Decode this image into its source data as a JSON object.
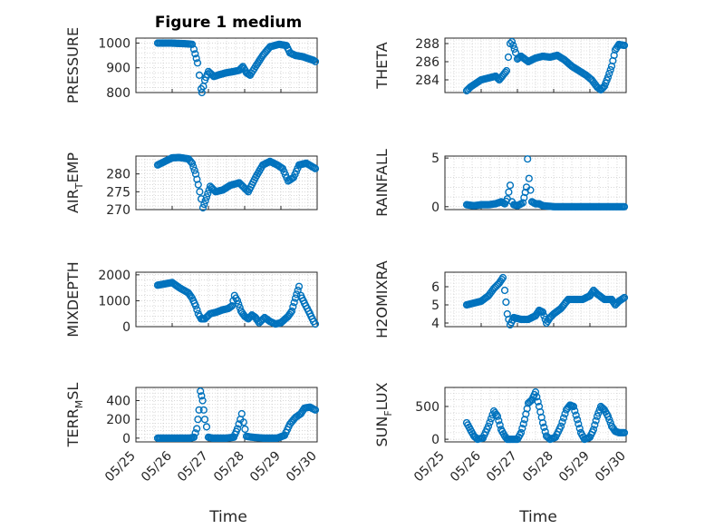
{
  "figure": {
    "title": "Figure 1 medium",
    "xlabel": "Time",
    "x_ticks": [
      "05/25",
      "05/26",
      "05/27",
      "05/28",
      "05/29",
      "05/30"
    ],
    "marker_color": "#0072BD"
  },
  "chart_data": [
    {
      "type": "scatter",
      "id": "pressure",
      "title": "Figure 1 medium",
      "ylabel": "PRESSURE",
      "ylabel_main": "PRESSURE",
      "ylabel_sub": "",
      "ylabel_tail": "",
      "ylim": [
        800,
        1020
      ],
      "yticks": [
        800,
        900,
        1000
      ],
      "xlim": [
        0,
        5
      ],
      "x_dates": [
        "05/25",
        "05/26",
        "05/27",
        "05/28",
        "05/29",
        "05/30"
      ],
      "show_xticks": false,
      "anchors": [
        [
          0.6,
          1000
        ],
        [
          0.95,
          1000
        ],
        [
          1.4,
          997
        ],
        [
          1.55,
          995
        ],
        [
          1.6,
          975
        ],
        [
          1.7,
          920
        ],
        [
          1.75,
          870
        ],
        [
          1.8,
          815
        ],
        [
          1.82,
          800
        ],
        [
          1.9,
          850
        ],
        [
          2.0,
          885
        ],
        [
          2.15,
          865
        ],
        [
          2.3,
          872
        ],
        [
          2.5,
          880
        ],
        [
          2.7,
          885
        ],
        [
          2.85,
          890
        ],
        [
          2.95,
          905
        ],
        [
          3.05,
          880
        ],
        [
          3.15,
          870
        ],
        [
          3.3,
          905
        ],
        [
          3.5,
          950
        ],
        [
          3.7,
          985
        ],
        [
          3.95,
          995
        ],
        [
          4.15,
          990
        ],
        [
          4.25,
          960
        ],
        [
          4.4,
          950
        ],
        [
          4.6,
          945
        ],
        [
          4.9,
          930
        ],
        [
          4.95,
          925
        ]
      ]
    },
    {
      "type": "scatter",
      "id": "theta",
      "ylabel": "THETA",
      "ylabel_main": "THETA",
      "ylabel_sub": "",
      "ylabel_tail": "",
      "ylim": [
        282.6,
        288.6
      ],
      "yticks": [
        284,
        286,
        288
      ],
      "xlim": [
        0,
        5
      ],
      "show_xticks": false,
      "anchors": [
        [
          0.6,
          282.8
        ],
        [
          0.7,
          283.2
        ],
        [
          0.85,
          283.6
        ],
        [
          1.0,
          284.0
        ],
        [
          1.2,
          284.2
        ],
        [
          1.4,
          284.4
        ],
        [
          1.5,
          284.0
        ],
        [
          1.6,
          284.5
        ],
        [
          1.7,
          285.0
        ],
        [
          1.75,
          286.5
        ],
        [
          1.8,
          288.0
        ],
        [
          1.85,
          288.2
        ],
        [
          1.95,
          287.0
        ],
        [
          2.0,
          286.3
        ],
        [
          2.1,
          286.6
        ],
        [
          2.3,
          286.0
        ],
        [
          2.5,
          286.4
        ],
        [
          2.7,
          286.6
        ],
        [
          2.9,
          286.5
        ],
        [
          3.1,
          286.7
        ],
        [
          3.3,
          286.2
        ],
        [
          3.5,
          285.5
        ],
        [
          3.7,
          285.0
        ],
        [
          3.9,
          284.5
        ],
        [
          4.05,
          284.0
        ],
        [
          4.2,
          283.2
        ],
        [
          4.3,
          282.9
        ],
        [
          4.4,
          283.3
        ],
        [
          4.5,
          284.3
        ],
        [
          4.6,
          285.5
        ],
        [
          4.7,
          287.3
        ],
        [
          4.8,
          287.9
        ],
        [
          4.95,
          287.8
        ]
      ]
    },
    {
      "type": "scatter",
      "id": "air_temp",
      "ylabel": "AIR_TEMP",
      "ylabel_main": "AIR",
      "ylabel_sub": "T",
      "ylabel_tail": "EMP",
      "ylim": [
        270,
        285
      ],
      "yticks": [
        270,
        275,
        280
      ],
      "xlim": [
        0,
        5
      ],
      "show_xticks": false,
      "anchors": [
        [
          0.6,
          282.5
        ],
        [
          0.8,
          283.5
        ],
        [
          1.0,
          284.5
        ],
        [
          1.2,
          284.6
        ],
        [
          1.45,
          284.2
        ],
        [
          1.55,
          283.0
        ],
        [
          1.65,
          280.0
        ],
        [
          1.72,
          277.0
        ],
        [
          1.8,
          273.0
        ],
        [
          1.85,
          270.5
        ],
        [
          1.95,
          273.5
        ],
        [
          2.05,
          276.5
        ],
        [
          2.2,
          275.0
        ],
        [
          2.4,
          275.5
        ],
        [
          2.6,
          276.8
        ],
        [
          2.85,
          277.5
        ],
        [
          3.0,
          276.0
        ],
        [
          3.1,
          275.0
        ],
        [
          3.3,
          279.0
        ],
        [
          3.5,
          282.5
        ],
        [
          3.7,
          283.5
        ],
        [
          3.9,
          282.5
        ],
        [
          4.05,
          281.5
        ],
        [
          4.2,
          278.0
        ],
        [
          4.35,
          279.0
        ],
        [
          4.5,
          282.5
        ],
        [
          4.7,
          283.0
        ],
        [
          4.95,
          281.5
        ]
      ]
    },
    {
      "type": "scatter",
      "id": "rainfall",
      "ylabel": "RAINFALL",
      "ylabel_main": "RAINFALL",
      "ylabel_sub": "",
      "ylabel_tail": "",
      "ylim": [
        -0.3,
        5.2
      ],
      "yticks": [
        0,
        5
      ],
      "xlim": [
        0,
        5
      ],
      "show_xticks": false,
      "anchors": [
        [
          0.6,
          0.2
        ],
        [
          0.8,
          0.1
        ],
        [
          1.0,
          0.2
        ],
        [
          1.2,
          0.2
        ],
        [
          1.4,
          0.3
        ],
        [
          1.55,
          0.5
        ],
        [
          1.65,
          0.3
        ],
        [
          1.72,
          0.8
        ],
        [
          1.8,
          2.2
        ],
        [
          1.85,
          0.5
        ],
        [
          1.9,
          0.2
        ],
        [
          2.0,
          0.1
        ],
        [
          2.1,
          0.3
        ],
        [
          2.15,
          0.4
        ],
        [
          2.25,
          2.0
        ],
        [
          2.28,
          4.9
        ],
        [
          2.32,
          2.9
        ],
        [
          2.4,
          0.5
        ],
        [
          2.5,
          0.3
        ],
        [
          2.6,
          0.3
        ],
        [
          2.7,
          0.1
        ],
        [
          3.0,
          0.0
        ],
        [
          4.95,
          0.0
        ]
      ]
    },
    {
      "type": "scatter",
      "id": "mixdepth",
      "ylabel": "MIXDEPTH",
      "ylabel_main": "MIXDEPTH",
      "ylabel_sub": "",
      "ylabel_tail": "",
      "ylim": [
        0,
        2100
      ],
      "yticks": [
        0,
        1000,
        2000
      ],
      "xlim": [
        0,
        5
      ],
      "show_xticks": false,
      "anchors": [
        [
          0.6,
          1600
        ],
        [
          0.8,
          1650
        ],
        [
          1.0,
          1700
        ],
        [
          1.2,
          1500
        ],
        [
          1.45,
          1300
        ],
        [
          1.55,
          1100
        ],
        [
          1.65,
          800
        ],
        [
          1.72,
          500
        ],
        [
          1.8,
          300
        ],
        [
          1.9,
          300
        ],
        [
          2.05,
          500
        ],
        [
          2.2,
          550
        ],
        [
          2.4,
          650
        ],
        [
          2.55,
          700
        ],
        [
          2.65,
          800
        ],
        [
          2.72,
          1200
        ],
        [
          2.8,
          1000
        ],
        [
          2.9,
          600
        ],
        [
          3.0,
          400
        ],
        [
          3.1,
          300
        ],
        [
          3.2,
          450
        ],
        [
          3.3,
          350
        ],
        [
          3.4,
          150
        ],
        [
          3.55,
          350
        ],
        [
          3.7,
          200
        ],
        [
          3.85,
          100
        ],
        [
          4.0,
          150
        ],
        [
          4.2,
          400
        ],
        [
          4.3,
          600
        ],
        [
          4.4,
          1100
        ],
        [
          4.5,
          1550
        ],
        [
          4.55,
          1200
        ],
        [
          4.65,
          900
        ],
        [
          4.8,
          500
        ],
        [
          4.9,
          200
        ],
        [
          4.95,
          100
        ]
      ]
    },
    {
      "type": "scatter",
      "id": "h2omixra",
      "ylabel": "H2OMIXRA",
      "ylabel_main": "H2OMIXRA",
      "ylabel_sub": "",
      "ylabel_tail": "",
      "ylim": [
        3.8,
        6.8
      ],
      "yticks": [
        4,
        5,
        6
      ],
      "xlim": [
        0,
        5
      ],
      "show_xticks": false,
      "anchors": [
        [
          0.6,
          5.0
        ],
        [
          0.8,
          5.1
        ],
        [
          1.0,
          5.2
        ],
        [
          1.2,
          5.5
        ],
        [
          1.35,
          5.9
        ],
        [
          1.5,
          6.2
        ],
        [
          1.6,
          6.5
        ],
        [
          1.65,
          5.8
        ],
        [
          1.72,
          4.5
        ],
        [
          1.8,
          3.9
        ],
        [
          1.9,
          4.3
        ],
        [
          2.1,
          4.2
        ],
        [
          2.3,
          4.2
        ],
        [
          2.5,
          4.4
        ],
        [
          2.6,
          4.7
        ],
        [
          2.7,
          4.6
        ],
        [
          2.8,
          4.0
        ],
        [
          2.9,
          4.3
        ],
        [
          3.0,
          4.5
        ],
        [
          3.2,
          4.8
        ],
        [
          3.4,
          5.3
        ],
        [
          3.6,
          5.3
        ],
        [
          3.8,
          5.3
        ],
        [
          4.0,
          5.5
        ],
        [
          4.1,
          5.8
        ],
        [
          4.2,
          5.6
        ],
        [
          4.4,
          5.3
        ],
        [
          4.6,
          5.3
        ],
        [
          4.7,
          5.0
        ],
        [
          4.8,
          5.2
        ],
        [
          4.95,
          5.4
        ]
      ]
    },
    {
      "type": "scatter",
      "id": "terr_msl",
      "ylabel": "TERR_MSL",
      "ylabel_main": "TERR",
      "ylabel_sub": "M",
      "ylabel_tail": "SL",
      "ylim": [
        -40,
        540
      ],
      "yticks": [
        0,
        200,
        400
      ],
      "xlim": [
        0,
        5
      ],
      "show_xticks": true,
      "anchors": [
        [
          0.6,
          0
        ],
        [
          1.0,
          0
        ],
        [
          1.5,
          0
        ],
        [
          1.6,
          10
        ],
        [
          1.68,
          100
        ],
        [
          1.74,
          300
        ],
        [
          1.78,
          500
        ],
        [
          1.84,
          400
        ],
        [
          1.9,
          200
        ],
        [
          1.95,
          120
        ],
        [
          2.0,
          10
        ],
        [
          2.1,
          0
        ],
        [
          2.5,
          0
        ],
        [
          2.7,
          10
        ],
        [
          2.8,
          100
        ],
        [
          2.88,
          200
        ],
        [
          2.92,
          260
        ],
        [
          2.97,
          170
        ],
        [
          3.05,
          20
        ],
        [
          3.2,
          10
        ],
        [
          3.5,
          0
        ],
        [
          3.9,
          0
        ],
        [
          4.1,
          30
        ],
        [
          4.25,
          150
        ],
        [
          4.4,
          220
        ],
        [
          4.55,
          260
        ],
        [
          4.65,
          320
        ],
        [
          4.8,
          330
        ],
        [
          4.95,
          300
        ]
      ]
    },
    {
      "type": "scatter",
      "id": "sunflux",
      "ylabel": "SUN_FLUX",
      "ylabel_main": "SUN",
      "ylabel_sub": "F",
      "ylabel_tail": "LUX",
      "ylim": [
        -40,
        790
      ],
      "yticks": [
        0,
        500
      ],
      "xlim": [
        0,
        5
      ],
      "show_xticks": true,
      "anchors": [
        [
          0.6,
          250
        ],
        [
          0.7,
          150
        ],
        [
          0.8,
          50
        ],
        [
          0.9,
          0
        ],
        [
          1.05,
          20
        ],
        [
          1.2,
          200
        ],
        [
          1.35,
          430
        ],
        [
          1.45,
          350
        ],
        [
          1.55,
          150
        ],
        [
          1.65,
          50
        ],
        [
          1.72,
          0
        ],
        [
          1.82,
          0
        ],
        [
          2.0,
          0
        ],
        [
          2.1,
          100
        ],
        [
          2.2,
          300
        ],
        [
          2.3,
          550
        ],
        [
          2.4,
          600
        ],
        [
          2.5,
          720
        ],
        [
          2.6,
          500
        ],
        [
          2.7,
          250
        ],
        [
          2.8,
          50
        ],
        [
          2.9,
          0
        ],
        [
          3.05,
          30
        ],
        [
          3.2,
          200
        ],
        [
          3.35,
          450
        ],
        [
          3.45,
          520
        ],
        [
          3.55,
          500
        ],
        [
          3.65,
          300
        ],
        [
          3.75,
          100
        ],
        [
          3.85,
          0
        ],
        [
          4.0,
          30
        ],
        [
          4.1,
          150
        ],
        [
          4.2,
          350
        ],
        [
          4.3,
          500
        ],
        [
          4.4,
          450
        ],
        [
          4.5,
          350
        ],
        [
          4.6,
          200
        ],
        [
          4.7,
          120
        ],
        [
          4.8,
          100
        ],
        [
          4.95,
          100
        ]
      ]
    }
  ]
}
